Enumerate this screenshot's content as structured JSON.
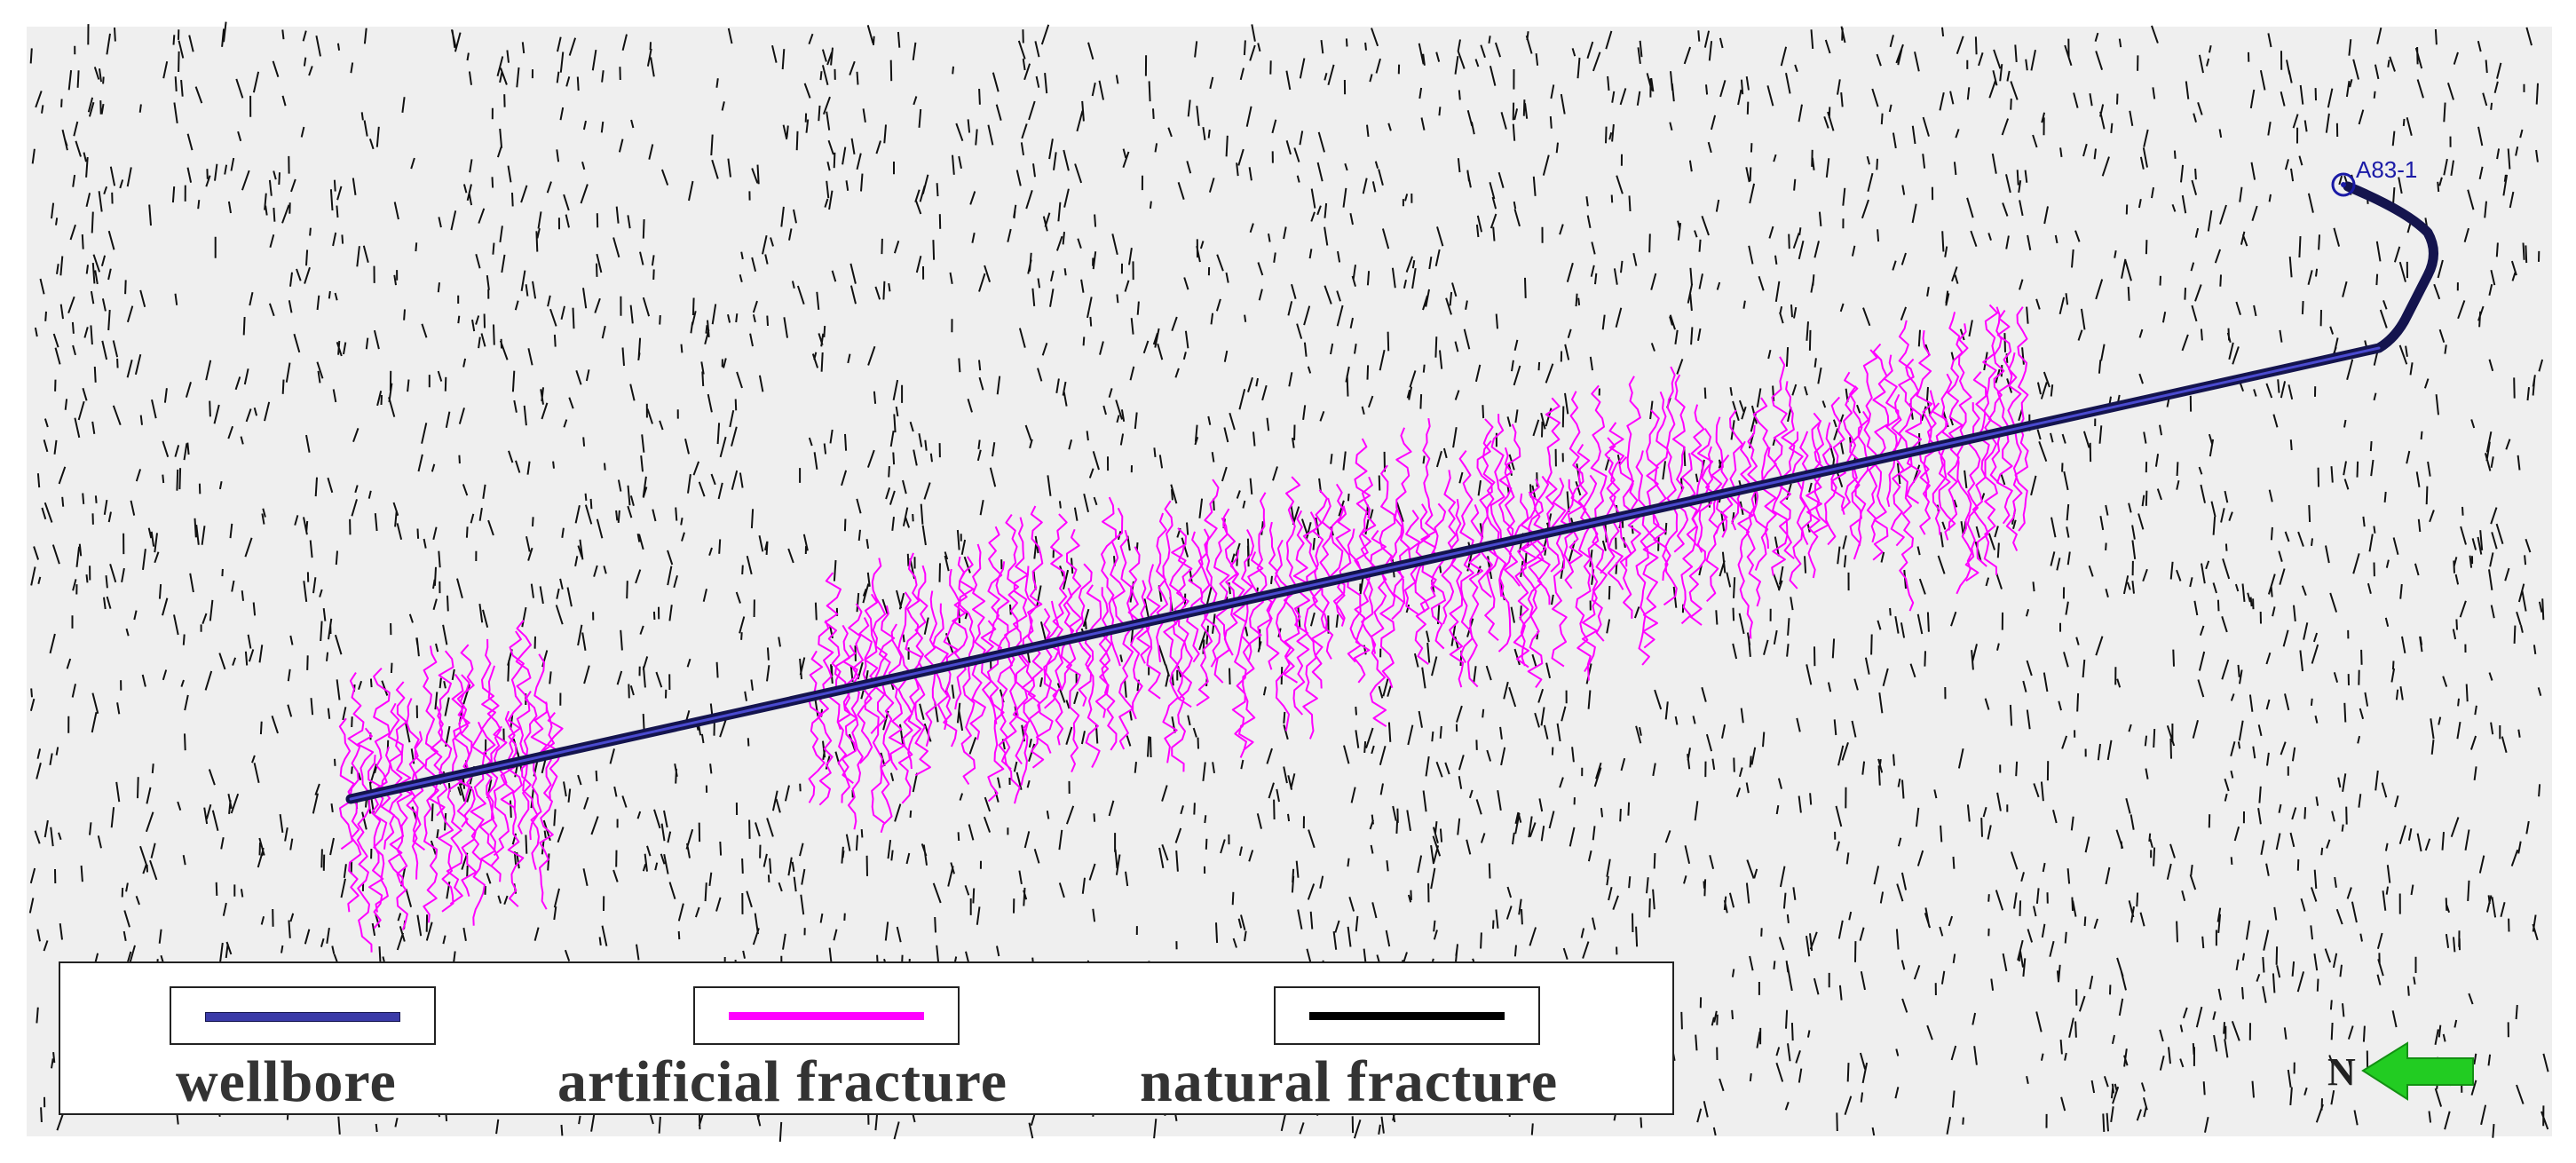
{
  "well": {
    "name": "A83-1"
  },
  "legend": {
    "items": [
      {
        "label": "wellbore",
        "color": "#3a3aa8"
      },
      {
        "label": "artificial fracture",
        "color": "#ff00ff"
      },
      {
        "label": "natural fracture",
        "color": "#000000"
      }
    ]
  },
  "compass": {
    "label": "N",
    "arrow_color": "#22cc22"
  },
  "colors": {
    "background": "#efefef",
    "wellbore": "#14144e",
    "fracture": "#ff00ff",
    "natural": "#111111"
  }
}
